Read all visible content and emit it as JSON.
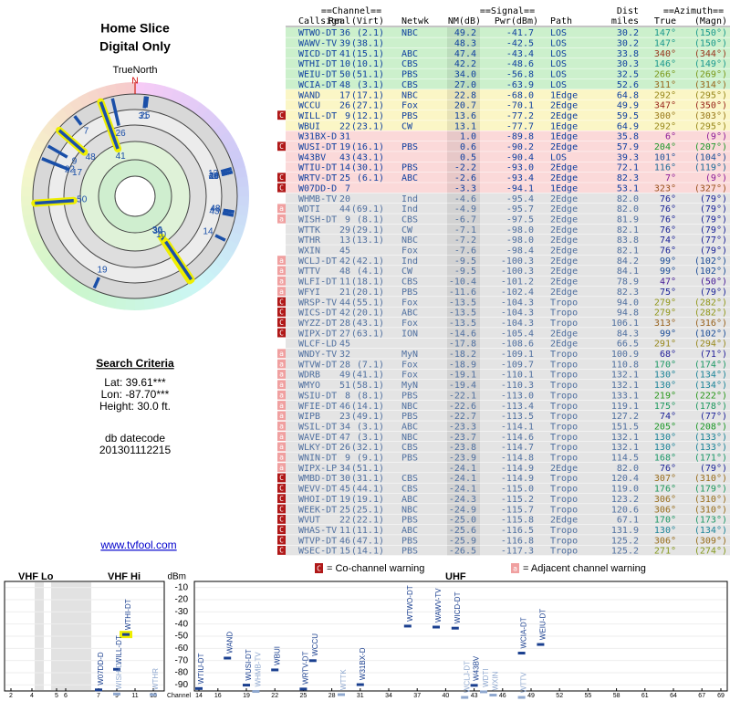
{
  "header": {
    "title": "Home Slice",
    "subtitle": "Digital Only"
  },
  "compass": {
    "label": "TrueNorth",
    "north": "N"
  },
  "search": {
    "title": "Search Criteria",
    "lines": [
      "Lat: 39.61***",
      "Lon: -87.70***",
      "Height: 30.0 ft."
    ],
    "db_label": "db datecode",
    "db_code": "201301112215"
  },
  "link": "www.tvfool.com",
  "table": {
    "groups": [
      "==Channel==",
      "==Signal==",
      "Dist",
      "==Azimuth=="
    ],
    "columns": [
      "Callsign",
      "Real",
      "(Virt)",
      "Netwk",
      "NM(dB)",
      "Pwr(dBm)",
      "Path",
      "miles",
      "True",
      "(Magn)"
    ],
    "rows": [
      [
        null,
        "WTWO-DT",
        "36",
        "(2.1)",
        "NBC",
        "49.2",
        "-41.7",
        "LOS",
        "30.2",
        "147°",
        "(150°)"
      ],
      [
        null,
        "WAWV-TV",
        "39",
        "(38.1)",
        null,
        "48.3",
        "-42.5",
        "LOS",
        "30.2",
        "147°",
        "(150°)"
      ],
      [
        null,
        "WICD-DT",
        "41",
        "(15.1)",
        "ABC",
        "47.4",
        "-43.4",
        "LOS",
        "33.8",
        "340°",
        "(344°)"
      ],
      [
        null,
        "WTHI-DT",
        "10",
        "(10.1)",
        "CBS",
        "42.2",
        "-48.6",
        "LOS",
        "30.3",
        "146°",
        "(149°)"
      ],
      [
        null,
        "WEIU-DT",
        "50",
        "(51.1)",
        "PBS",
        "34.0",
        "-56.8",
        "LOS",
        "32.5",
        "266°",
        "(269°)"
      ],
      [
        null,
        "WCIA-DT",
        "48",
        "(3.1)",
        "CBS",
        "27.0",
        "-63.9",
        "LOS",
        "52.6",
        "311°",
        "(314°)"
      ],
      [
        null,
        "WAND",
        "17",
        "(17.1)",
        "NBC",
        "22.8",
        "-68.0",
        "1Edge",
        "64.8",
        "292°",
        "(295°)"
      ],
      [
        null,
        "WCCU",
        "26",
        "(27.1)",
        "Fox",
        "20.7",
        "-70.1",
        "2Edge",
        "49.9",
        "347°",
        "(350°)"
      ],
      [
        "C",
        "WILL-DT",
        "9",
        "(12.1)",
        "PBS",
        "13.6",
        "-77.2",
        "2Edge",
        "59.5",
        "300°",
        "(303°)"
      ],
      [
        null,
        "WBUI",
        "22",
        "(23.1)",
        "CW",
        "13.1",
        "-77.7",
        "1Edge",
        "64.9",
        "292°",
        "(295°)"
      ],
      [
        null,
        "W31BX-D",
        "31",
        null,
        null,
        "1.0",
        "-89.8",
        "1Edge",
        "35.8",
        "6°",
        "(9°)"
      ],
      [
        "C",
        "WUSI-DT",
        "19",
        "(16.1)",
        "PBS",
        "0.6",
        "-90.2",
        "2Edge",
        "57.9",
        "204°",
        "(207°)"
      ],
      [
        null,
        "W43BV",
        "43",
        "(43.1)",
        null,
        "0.5",
        "-90.4",
        "LOS",
        "39.3",
        "101°",
        "(104°)"
      ],
      [
        null,
        "WTIU-DT",
        "14",
        "(30.1)",
        "PBS",
        "-2.2",
        "-93.0",
        "2Edge",
        "72.1",
        "116°",
        "(119°)"
      ],
      [
        "C",
        "WRTV-DT",
        "25",
        "(6.1)",
        "ABC",
        "-2.6",
        "-93.4",
        "2Edge",
        "82.3",
        "7°",
        "(9°)"
      ],
      [
        "C",
        "W07DD-D",
        "7",
        null,
        null,
        "-3.3",
        "-94.1",
        "1Edge",
        "53.1",
        "323°",
        "(327°)"
      ],
      [
        null,
        "WHMB-TV",
        "20",
        null,
        "Ind",
        "-4.6",
        "-95.4",
        "2Edge",
        "82.0",
        "76°",
        "(79°)"
      ],
      [
        "a",
        "WDTI",
        "44",
        "(69.1)",
        "Ind",
        "-4.9",
        "-95.7",
        "2Edge",
        "82.0",
        "76°",
        "(79°)"
      ],
      [
        "a",
        "WISH-DT",
        "9",
        "(8.1)",
        "CBS",
        "-6.7",
        "-97.5",
        "2Edge",
        "81.9",
        "76°",
        "(79°)"
      ],
      [
        null,
        "WTTK",
        "29",
        "(29.1)",
        "CW",
        "-7.1",
        "-98.0",
        "2Edge",
        "82.1",
        "76°",
        "(79°)"
      ],
      [
        null,
        "WTHR",
        "13",
        "(13.1)",
        "NBC",
        "-7.2",
        "-98.0",
        "2Edge",
        "83.8",
        "74°",
        "(77°)"
      ],
      [
        null,
        "WXIN",
        "45",
        null,
        "Fox",
        "-7.6",
        "-98.4",
        "2Edge",
        "82.1",
        "76°",
        "(79°)"
      ],
      [
        "a",
        "WCLJ-DT",
        "42",
        "(42.1)",
        "Ind",
        "-9.5",
        "-100.3",
        "2Edge",
        "84.2",
        "99°",
        "(102°)"
      ],
      [
        "a",
        "WTTV",
        "48",
        "(4.1)",
        "CW",
        "-9.5",
        "-100.3",
        "2Edge",
        "84.1",
        "99°",
        "(102°)"
      ],
      [
        "a",
        "WLFI-DT",
        "11",
        "(18.1)",
        "CBS",
        "-10.4",
        "-101.2",
        "2Edge",
        "78.9",
        "47°",
        "(50°)"
      ],
      [
        "a",
        "WFYI",
        "21",
        "(20.1)",
        "PBS",
        "-11.6",
        "-102.4",
        "2Edge",
        "82.3",
        "75°",
        "(79°)"
      ],
      [
        "C",
        "WRSP-TV",
        "44",
        "(55.1)",
        "Fox",
        "-13.5",
        "-104.3",
        "Tropo",
        "94.0",
        "279°",
        "(282°)"
      ],
      [
        "C",
        "WICS-DT",
        "42",
        "(20.1)",
        "ABC",
        "-13.5",
        "-104.3",
        "Tropo",
        "94.8",
        "279°",
        "(282°)"
      ],
      [
        "C",
        "WYZZ-DT",
        "28",
        "(43.1)",
        "Fox",
        "-13.5",
        "-104.3",
        "Tropo",
        "106.1",
        "313°",
        "(316°)"
      ],
      [
        "C",
        "WIPX-DT",
        "27",
        "(63.1)",
        "ION",
        "-14.6",
        "-105.4",
        "2Edge",
        "84.3",
        "99°",
        "(102°)"
      ],
      [
        null,
        "WLCF-LD",
        "45",
        null,
        null,
        "-17.8",
        "-108.6",
        "2Edge",
        "66.5",
        "291°",
        "(294°)"
      ],
      [
        "a",
        "WNDY-TV",
        "32",
        null,
        "MyN",
        "-18.2",
        "-109.1",
        "Tropo",
        "100.9",
        "68°",
        "(71°)"
      ],
      [
        "a",
        "WTVW-DT",
        "28",
        "(7.1)",
        "Fox",
        "-18.9",
        "-109.7",
        "Tropo",
        "110.8",
        "170°",
        "(174°)"
      ],
      [
        "a",
        "WDRB",
        "49",
        "(41.1)",
        "Fox",
        "-19.1",
        "-110.1",
        "Tropo",
        "132.1",
        "130°",
        "(134°)"
      ],
      [
        "a",
        "WMYO",
        "51",
        "(58.1)",
        "MyN",
        "-19.4",
        "-110.3",
        "Tropo",
        "132.1",
        "130°",
        "(134°)"
      ],
      [
        "a",
        "WSIU-DT",
        "8",
        "(8.1)",
        "PBS",
        "-22.1",
        "-113.0",
        "Tropo",
        "133.1",
        "219°",
        "(222°)"
      ],
      [
        "a",
        "WFIE-DT",
        "46",
        "(14.1)",
        "NBC",
        "-22.6",
        "-113.4",
        "Tropo",
        "119.1",
        "175°",
        "(178°)"
      ],
      [
        "a",
        "WIPB",
        "23",
        "(49.1)",
        "PBS",
        "-22.7",
        "-113.5",
        "Tropo",
        "127.2",
        "74°",
        "(77°)"
      ],
      [
        "a",
        "WSIL-DT",
        "34",
        "(3.1)",
        "ABC",
        "-23.3",
        "-114.1",
        "Tropo",
        "151.5",
        "205°",
        "(208°)"
      ],
      [
        "a",
        "WAVE-DT",
        "47",
        "(3.1)",
        "NBC",
        "-23.7",
        "-114.6",
        "Tropo",
        "132.1",
        "130°",
        "(133°)"
      ],
      [
        "a",
        "WLKY-DT",
        "26",
        "(32.1)",
        "CBS",
        "-23.8",
        "-114.7",
        "Tropo",
        "132.1",
        "130°",
        "(133°)"
      ],
      [
        "a",
        "WNIN-DT",
        "9",
        "(9.1)",
        "PBS",
        "-23.9",
        "-114.8",
        "Tropo",
        "114.5",
        "168°",
        "(171°)"
      ],
      [
        "a",
        "WIPX-LP",
        "34",
        "(51.1)",
        null,
        "-24.1",
        "-114.9",
        "2Edge",
        "82.0",
        "76°",
        "(79°)"
      ],
      [
        "C",
        "WMBD-DT",
        "30",
        "(31.1)",
        "CBS",
        "-24.1",
        "-114.9",
        "Tropo",
        "120.4",
        "307°",
        "(310°)"
      ],
      [
        "C",
        "WEVV-DT",
        "45",
        "(44.1)",
        "CBS",
        "-24.1",
        "-115.0",
        "Tropo",
        "119.0",
        "176°",
        "(179°)"
      ],
      [
        "C",
        "WHOI-DT",
        "19",
        "(19.1)",
        "ABC",
        "-24.3",
        "-115.2",
        "Tropo",
        "123.2",
        "306°",
        "(310°)"
      ],
      [
        "C",
        "WEEK-DT",
        "25",
        "(25.1)",
        "NBC",
        "-24.9",
        "-115.7",
        "Tropo",
        "120.6",
        "306°",
        "(310°)"
      ],
      [
        "C",
        "WVUT",
        "22",
        "(22.1)",
        "PBS",
        "-25.0",
        "-115.8",
        "2Edge",
        "67.1",
        "170°",
        "(173°)"
      ],
      [
        "C",
        "WHAS-TV",
        "11",
        "(11.1)",
        "ABC",
        "-25.6",
        "-116.5",
        "Tropo",
        "131.9",
        "130°",
        "(134°)"
      ],
      [
        "C",
        "WTVP-DT",
        "46",
        "(47.1)",
        "PBS",
        "-25.9",
        "-116.8",
        "Tropo",
        "125.2",
        "306°",
        "(309°)"
      ],
      [
        "C",
        "WSEC-DT",
        "15",
        "(14.1)",
        "PBS",
        "-26.5",
        "-117.3",
        "Tropo",
        "125.2",
        "271°",
        "(274°)"
      ]
    ]
  },
  "spectrum": {
    "bands": [
      "VHF Lo",
      "VHF Hi",
      "UHF"
    ],
    "y_label": "dBm",
    "x_label": "Channel",
    "ylim": [
      -95,
      -5
    ],
    "yticks": [
      -10,
      -20,
      -30,
      -40,
      -50,
      -60,
      -70,
      -80,
      -90
    ],
    "vhf_ticks": [
      2,
      4,
      5,
      6,
      7,
      9,
      11,
      13
    ],
    "uhf_ticks": [
      14,
      16,
      19,
      22,
      25,
      28,
      31,
      34,
      37,
      40,
      43,
      46,
      49,
      52,
      55,
      58,
      61,
      64,
      67,
      69
    ],
    "legend_marks": [
      "C",
      "a"
    ],
    "legend": [
      "= Co-channel warning",
      "= Adjacent channel warning"
    ]
  }
}
